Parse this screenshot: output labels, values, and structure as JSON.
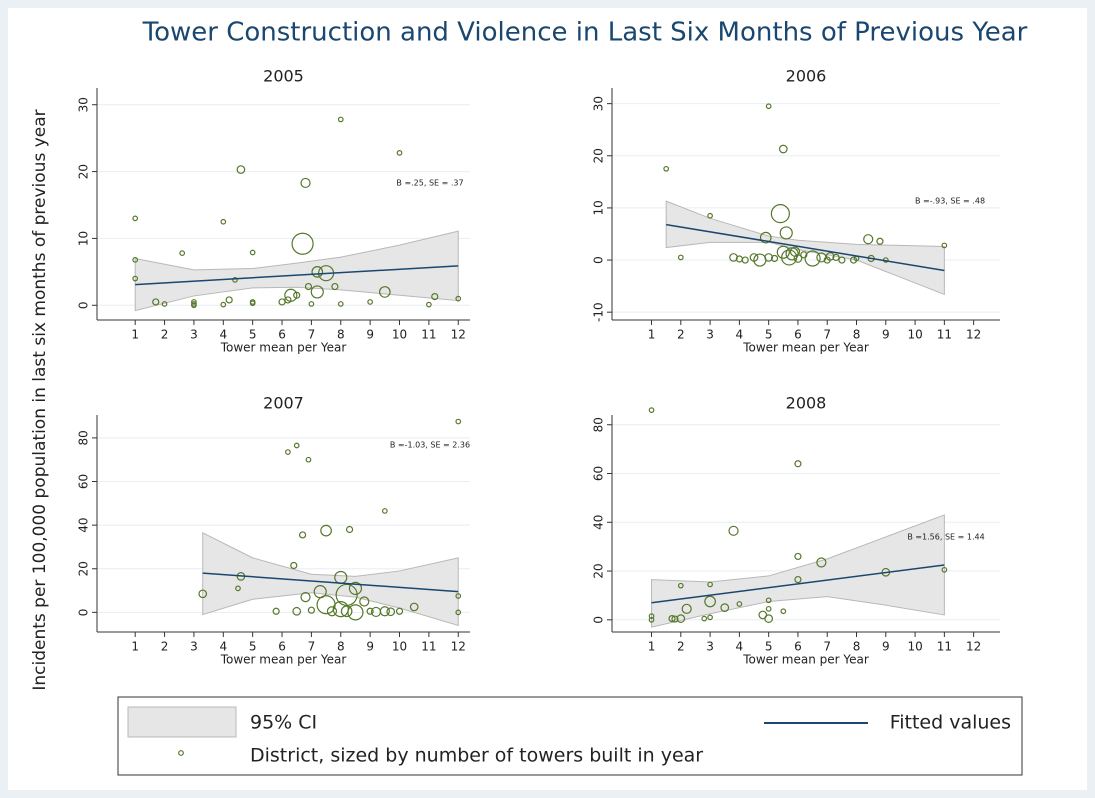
{
  "title": "Tower Construction and Violence in Last Six Months of Previous Year",
  "ylabel": "Incidents per 100,000 population in last six months of previous year",
  "legend": [
    {
      "name": "95% CI",
      "color": "#e6e6e6"
    },
    {
      "name": "Fitted values",
      "color": "#1a476f"
    },
    {
      "name": "District, sized by number of towers built in year",
      "color": "#55772a"
    }
  ],
  "chart_data": [
    {
      "type": "scatter",
      "title": "2005",
      "xlabel": "Tower mean per Year",
      "annotation": "B =.25, SE = .37",
      "xlim": [
        -0.3,
        12.4
      ],
      "xticks": [
        1,
        2,
        3,
        4,
        5,
        6,
        7,
        8,
        9,
        10,
        11,
        12
      ],
      "ylim": [
        -2.2,
        32.5
      ],
      "yticks": [
        0,
        10,
        20,
        30
      ],
      "grid": true,
      "x": [
        1,
        1,
        1,
        1.7,
        2,
        2.6,
        3,
        3,
        3,
        4,
        4,
        4.2,
        4.4,
        4.6,
        5,
        5,
        5,
        6,
        6.2,
        6.3,
        6.5,
        6.7,
        6.8,
        6.9,
        7,
        7.2,
        7.2,
        7.5,
        7.8,
        8,
        8,
        9,
        9.5,
        10,
        11,
        11.2,
        12
      ],
      "values": [
        13,
        6.8,
        4,
        0.5,
        0.2,
        7.8,
        0.5,
        0.2,
        0,
        12.5,
        0.1,
        0.8,
        3.8,
        20.3,
        7.9,
        0.5,
        0.3,
        0.5,
        0.8,
        1.5,
        1.5,
        9.2,
        18.3,
        2.8,
        0.2,
        5,
        2,
        4.8,
        2.8,
        27.8,
        0.2,
        0.5,
        2,
        22.8,
        0.1,
        1.3,
        1
      ],
      "sizes": [
        1,
        1,
        1,
        2,
        1,
        1,
        1,
        1,
        1,
        1,
        1,
        2,
        1,
        3,
        1,
        1,
        1,
        2,
        2,
        6,
        2,
        12,
        4,
        2,
        1,
        5,
        6,
        8,
        2,
        1,
        1,
        1,
        5,
        1,
        1,
        2,
        1
      ],
      "fit": {
        "x": [
          1,
          12
        ],
        "values": [
          3.1,
          5.9
        ]
      },
      "ci": {
        "x": [
          1,
          3,
          5,
          6.5,
          8,
          10,
          12
        ],
        "upper": [
          7,
          5.3,
          5.5,
          6.3,
          7.2,
          9,
          11.1
        ],
        "lower": [
          -0.8,
          1.4,
          2.6,
          2.7,
          2.3,
          1.5,
          0.7
        ]
      }
    },
    {
      "type": "scatter",
      "title": "2006",
      "xlabel": "Tower mean per Year",
      "annotation": "B =-.93, SE = .48",
      "xlim": [
        -0.35,
        12.9
      ],
      "xticks": [
        1,
        2,
        3,
        4,
        5,
        6,
        7,
        8,
        9,
        10,
        11,
        12
      ],
      "ylim": [
        -11.5,
        33
      ],
      "yticks": [
        -10,
        0,
        10,
        20,
        30
      ],
      "grid": true,
      "x": [
        1.5,
        2,
        3,
        3.8,
        4,
        4.2,
        4.5,
        4.7,
        4.9,
        5,
        5,
        5.2,
        5.4,
        5.5,
        5.5,
        5.6,
        5.7,
        5.8,
        5.9,
        6,
        6.2,
        6.5,
        6.8,
        7,
        7.1,
        7.3,
        7.5,
        7.9,
        8,
        8.4,
        8.5,
        8.8,
        9,
        11
      ],
      "values": [
        17.5,
        0.5,
        8.5,
        0.5,
        0.2,
        0,
        0.5,
        0,
        4.3,
        29.5,
        0.5,
        0.3,
        8.9,
        21.3,
        1.5,
        5.2,
        0.5,
        1.2,
        1.6,
        0.3,
        1,
        0.3,
        0.5,
        0,
        0.7,
        0.5,
        0,
        0,
        0.3,
        4,
        0.3,
        3.6,
        0,
        2.8
      ],
      "sizes": [
        1,
        1,
        1,
        3,
        2,
        2,
        3,
        6,
        5,
        1,
        3,
        2,
        10,
        3,
        6,
        6,
        8,
        6,
        4,
        3,
        2,
        8,
        4,
        2,
        3,
        2,
        2,
        2,
        1,
        4,
        2,
        2,
        1,
        1
      ],
      "fit": {
        "x": [
          1.5,
          11
        ],
        "values": [
          6.8,
          -2
        ]
      },
      "ci": {
        "x": [
          1.5,
          3,
          5,
          6,
          8,
          11
        ],
        "upper": [
          11.3,
          8,
          4.6,
          3.8,
          3,
          2.6
        ],
        "lower": [
          2.4,
          3.4,
          3.4,
          2,
          0,
          -6.6
        ]
      }
    },
    {
      "type": "scatter",
      "title": "2007",
      "xlabel": "Tower mean per Year",
      "annotation": "B =-1.03, SE = 2.36",
      "xlim": [
        -0.3,
        12.4
      ],
      "xticks": [
        1,
        2,
        3,
        4,
        5,
        6,
        7,
        8,
        9,
        10,
        11,
        12
      ],
      "ylim": [
        -9,
        90.5
      ],
      "yticks": [
        0,
        20,
        40,
        60,
        80
      ],
      "grid": true,
      "x": [
        3.3,
        4.5,
        4.6,
        5.8,
        6.2,
        6.4,
        6.5,
        6.5,
        6.7,
        6.8,
        6.9,
        7,
        7.3,
        7.5,
        7.5,
        7.7,
        8,
        8,
        8.2,
        8.2,
        8.3,
        8.5,
        8.5,
        8.8,
        9,
        9.2,
        9.5,
        9.5,
        9.7,
        10,
        10.5,
        12,
        12,
        12
      ],
      "values": [
        8.5,
        11,
        16.5,
        0.5,
        73.5,
        21.5,
        76.5,
        0.5,
        35.5,
        7,
        70,
        1,
        9.5,
        37.5,
        3.5,
        0.5,
        16,
        1.5,
        8,
        0.5,
        38,
        11,
        0,
        5,
        0.5,
        0.2,
        46.5,
        0.5,
        0.3,
        0.5,
        2.5,
        87.5,
        7.5,
        0
      ],
      "sizes": [
        3,
        1,
        3,
        2,
        1,
        2,
        1,
        3,
        2,
        4,
        1,
        2,
        6,
        5,
        10,
        4,
        6,
        8,
        12,
        5,
        2,
        6,
        8,
        4,
        2,
        4,
        1,
        4,
        3,
        2,
        3,
        1,
        1,
        1
      ],
      "fit": {
        "x": [
          3.3,
          12
        ],
        "values": [
          18,
          9.5
        ]
      },
      "ci": {
        "x": [
          3.3,
          5,
          7,
          8.5,
          10,
          12
        ],
        "upper": [
          36.5,
          25,
          17.5,
          16.5,
          19,
          25
        ],
        "lower": [
          -1,
          6,
          9,
          7,
          2,
          -6
        ]
      }
    },
    {
      "type": "scatter",
      "title": "2008",
      "xlabel": "Tower mean per Year",
      "annotation": "B =1.56, SE = 1.44",
      "xlim": [
        -0.35,
        12.9
      ],
      "xticks": [
        1,
        2,
        3,
        4,
        5,
        6,
        7,
        8,
        9,
        10,
        11,
        12
      ],
      "ylim": [
        -5,
        84
      ],
      "yticks": [
        0,
        20,
        40,
        60,
        80
      ],
      "grid": true,
      "x": [
        1,
        1,
        1,
        1.7,
        1.8,
        2,
        2,
        2.2,
        2.8,
        3,
        3,
        3,
        3.5,
        3.8,
        4,
        4.8,
        5,
        5,
        5,
        5.5,
        6,
        6,
        6,
        6.8,
        9,
        11
      ],
      "values": [
        86,
        0,
        1.5,
        0.5,
        0.3,
        14,
        0.5,
        4.5,
        0.5,
        14.5,
        7.5,
        1,
        5,
        36.5,
        6.5,
        2,
        8,
        4.5,
        0.5,
        3.5,
        64,
        26,
        16.5,
        23.5,
        19.5,
        20.5
      ],
      "sizes": [
        1,
        1,
        1,
        2,
        2,
        1,
        3,
        4,
        1,
        1,
        5,
        1,
        3,
        4,
        1,
        3,
        1,
        1,
        3,
        1,
        2,
        2,
        2,
        4,
        3,
        1
      ],
      "fit": {
        "x": [
          1,
          11
        ],
        "values": [
          7,
          22.5
        ]
      },
      "ci": {
        "x": [
          1,
          3,
          5,
          7,
          9,
          11
        ],
        "upper": [
          16.5,
          15.5,
          18,
          25,
          34,
          43
        ],
        "lower": [
          -3,
          2.5,
          7.5,
          9.5,
          6,
          2
        ]
      }
    }
  ]
}
